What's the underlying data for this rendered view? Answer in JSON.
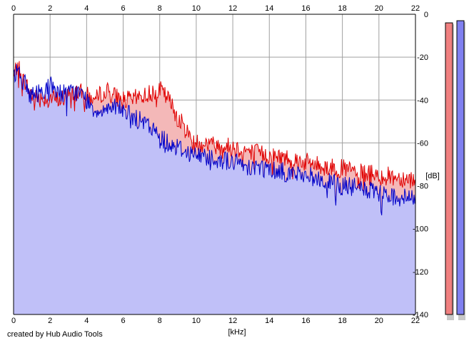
{
  "footer_text": "created by Hub Audio Tools",
  "chart_data": {
    "type": "area",
    "title": "",
    "xlabel": "[kHz]",
    "ylabel": "[dB]",
    "xlim": [
      0,
      22
    ],
    "ylim": [
      -140,
      0
    ],
    "x_ticks": [
      "0",
      "2",
      "4",
      "6",
      "8",
      "10",
      "12",
      "14",
      "16",
      "18",
      "20",
      "22"
    ],
    "y_ticks": [
      "0",
      "-20",
      "-40",
      "-60",
      "-80",
      "-100",
      "-120",
      "-140"
    ],
    "grid": true,
    "colors": {
      "red_line": "#e00000",
      "blue_line": "#0000c8",
      "red_fill": "#f4b8b8",
      "blue_fill": "#c0c0f8",
      "grid": "#a0a0a0"
    },
    "series": [
      {
        "color": "red",
        "x": [
          0,
          0.2,
          0.5,
          1,
          1.5,
          2,
          2.5,
          3,
          3.5,
          4,
          4.5,
          5,
          5.5,
          6,
          6.5,
          7,
          7.5,
          8,
          8.5,
          9,
          9.5,
          10,
          10.5,
          11,
          12,
          13,
          14,
          15,
          16,
          17,
          18,
          19,
          20,
          21,
          22
        ],
        "values": [
          -30,
          -23,
          -30,
          -38,
          -39,
          -39,
          -40,
          -38,
          -36,
          -38,
          -40,
          -35,
          -38,
          -40,
          -40,
          -38,
          -37,
          -35,
          -40,
          -48,
          -55,
          -60,
          -60,
          -61,
          -62,
          -64,
          -66,
          -67,
          -69,
          -71,
          -72,
          -74,
          -75,
          -76,
          -77
        ]
      },
      {
        "color": "blue",
        "x": [
          0,
          0.2,
          0.5,
          1,
          1.5,
          2,
          2.5,
          3,
          3.5,
          4,
          4.5,
          5,
          5.5,
          6,
          6.5,
          7,
          7.5,
          8,
          8.5,
          9,
          9.5,
          10,
          10.5,
          11,
          12,
          13,
          14,
          15,
          16,
          17,
          18,
          19,
          20,
          21,
          22
        ],
        "values": [
          -30,
          -24,
          -31,
          -38,
          -36,
          -33,
          -36,
          -37,
          -36,
          -40,
          -45,
          -44,
          -42,
          -45,
          -48,
          -50,
          -53,
          -57,
          -60,
          -62,
          -64,
          -66,
          -66,
          -67,
          -69,
          -71,
          -72,
          -74,
          -75,
          -78,
          -80,
          -81,
          -84,
          -85,
          -86
        ]
      }
    ],
    "meters": [
      {
        "color": "red",
        "level": -4
      },
      {
        "color": "blue",
        "level": -3
      }
    ]
  }
}
